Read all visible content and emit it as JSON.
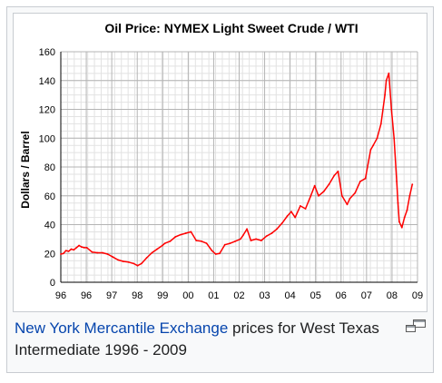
{
  "chart_data": {
    "type": "line",
    "title": "Oil Price: NYMEX Light Sweet Crude / WTI",
    "xlabel": "",
    "ylabel": "Dollars / Barrel",
    "ylim": [
      0,
      160
    ],
    "yticks": [
      0,
      20,
      40,
      60,
      80,
      100,
      120,
      140,
      160
    ],
    "xticklabels": [
      "96",
      "96",
      "97",
      "98",
      "99",
      "00",
      "01",
      "02",
      "03",
      "04",
      "05",
      "06",
      "07",
      "08",
      "09"
    ],
    "grid": true,
    "line_color": "#ff0000",
    "series": [
      {
        "x": [
          1996.0,
          1996.1,
          1996.2,
          1996.3,
          1996.4,
          1996.5,
          1996.6,
          1996.7,
          1996.8,
          1996.9,
          1997.0,
          1997.2,
          1997.4,
          1997.6,
          1997.8,
          1998.0,
          1998.2,
          1998.4,
          1998.6,
          1998.8,
          1998.95,
          1999.1,
          1999.3,
          1999.5,
          1999.7,
          1999.9,
          2000.0,
          2000.2,
          2000.4,
          2000.6,
          2000.8,
          2001.0,
          2001.2,
          2001.4,
          2001.6,
          2001.8,
          2001.95,
          2002.1,
          2002.3,
          2002.5,
          2002.7,
          2002.9,
          2003.0,
          2003.15,
          2003.3,
          2003.5,
          2003.7,
          2003.9,
          2004.1,
          2004.3,
          2004.5,
          2004.7,
          2004.85,
          2005.0,
          2005.2,
          2005.4,
          2005.6,
          2005.75,
          2005.9,
          2006.1,
          2006.3,
          2006.5,
          2006.65,
          2006.8,
          2007.0,
          2007.1,
          2007.3,
          2007.5,
          2007.7,
          2007.9,
          2008.0,
          2008.15,
          2008.3,
          2008.45,
          2008.5,
          2008.6,
          2008.7,
          2008.8,
          2008.9,
          2008.95,
          2009.0,
          2009.1,
          2009.2,
          2009.3,
          2009.4,
          2009.5
        ],
        "y": [
          19.5,
          20,
          22,
          21.5,
          23,
          22.5,
          24,
          25.5,
          24.5,
          24,
          24,
          21,
          20.5,
          20.5,
          19.5,
          17.5,
          15.5,
          14.5,
          14,
          13,
          11.5,
          13,
          17,
          20.5,
          23,
          25.5,
          27,
          28.5,
          31.5,
          33,
          34,
          35,
          29,
          28.5,
          27,
          22,
          19.5,
          20,
          26,
          27,
          28.5,
          30,
          32.5,
          37,
          29,
          30,
          29,
          32,
          34,
          37,
          41,
          46,
          49,
          45,
          53,
          51,
          60,
          67,
          60,
          63,
          68,
          74,
          77,
          60,
          54,
          58,
          62,
          70,
          72,
          92,
          95,
          100,
          110,
          130,
          140,
          145,
          120,
          100,
          70,
          55,
          42,
          38,
          45,
          50,
          60,
          68
        ]
      }
    ]
  },
  "caption": {
    "link_text": "New York Mercantile Exchange",
    "text": " prices for West Texas Intermediate 1996 - 2009"
  },
  "enlarge_icon": "magnify-clip-icon"
}
